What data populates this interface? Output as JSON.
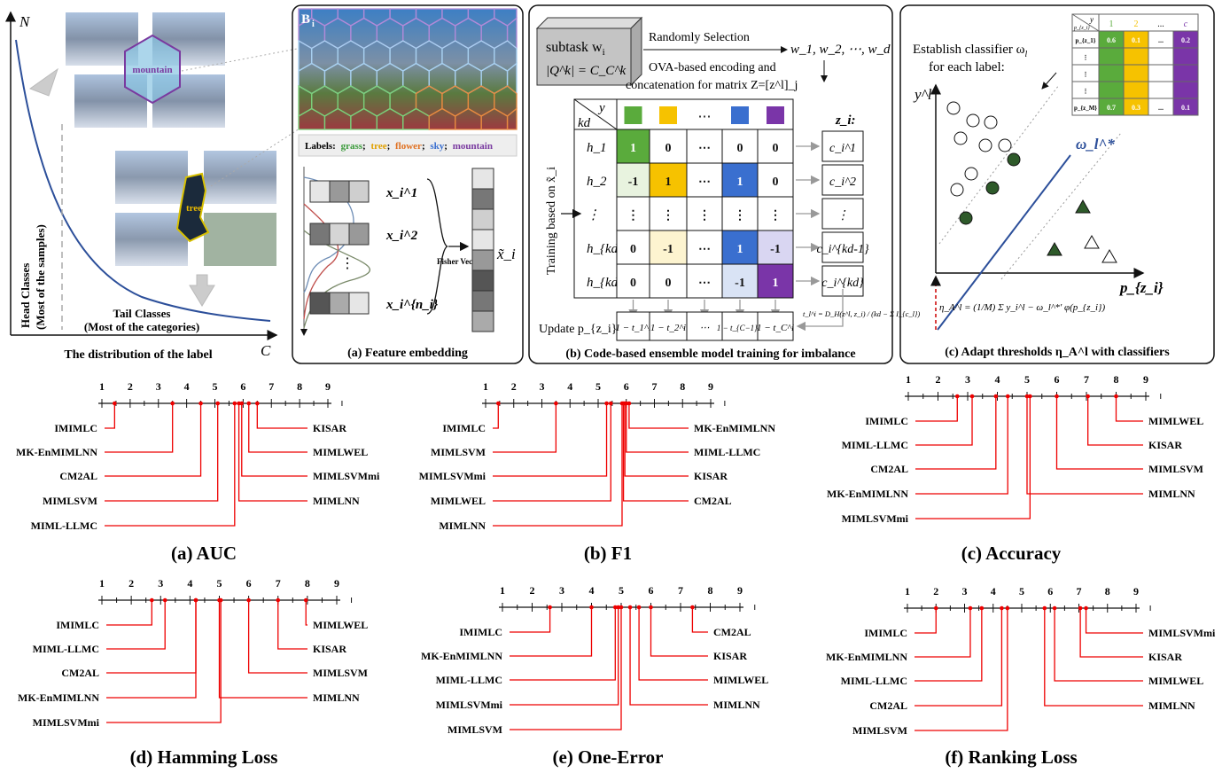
{
  "panel_dist": {
    "axis_y": "N",
    "axis_x": "C",
    "head_label_1": "Head Classes",
    "head_label_2": "(Most of the samples)",
    "tail_label_1": "Tail Classes",
    "tail_label_2": "(Most of the categories)",
    "caption": "The distribution of the label",
    "mountain_tag": "mountain",
    "tree_tag": "tree"
  },
  "panel_a": {
    "bag_label": "B",
    "bag_sub": "i",
    "labels_prefix": "Labels:",
    "labels": [
      {
        "text": "grass",
        "color": "#3a9a3a"
      },
      {
        "text": "tree",
        "color": "#e0a000"
      },
      {
        "text": "flower",
        "color": "#e07020"
      },
      {
        "text": "sky",
        "color": "#3a6fcf"
      },
      {
        "text": "mountain",
        "color": "#7a3aa0"
      }
    ],
    "x_labels": [
      "x_i^1",
      "x_i^2",
      "x_i^{n_i}"
    ],
    "fisher": "Fisher Vector",
    "embed_label": "x̃_i",
    "caption": "(a) Feature embedding"
  },
  "panel_b": {
    "subtask_line1": "subtask w",
    "subtask_sub": "i",
    "subtask_line2": "|Q^k| = C_C^k",
    "random_sel": "Randomly Selection",
    "w_list": "w_1, w_2, ⋯, w_d",
    "ova_1": "OVA-based encoding and",
    "ova_2": "concatenation for matrix Z=[z^l]_j",
    "corner_y": "y",
    "corner_kd": "kd",
    "zi_head": "z_i:",
    "train_label": "Training based on x̃_i",
    "col_colors": [
      "#5aab3c",
      "#f6c200",
      "#ffffff",
      "#3a6fcf",
      "#7a35a8"
    ],
    "rows": [
      {
        "h": "h_1",
        "cells": [
          "1",
          "0",
          "⋯",
          "0",
          "0"
        ],
        "c": "c_i^1"
      },
      {
        "h": "h_2",
        "cells": [
          "-1",
          "1",
          "⋯",
          "1",
          "0"
        ],
        "c": "c_i^2"
      },
      {
        "h": "⋮",
        "cells": [
          "⋮",
          "⋮",
          "⋮",
          "⋮",
          "⋮"
        ],
        "c": "⋮"
      },
      {
        "h": "h_{kd-1}",
        "cells": [
          "0",
          "-1",
          "⋯",
          "1",
          "-1"
        ],
        "c": "c_i^{kd-1}"
      },
      {
        "h": "h_{kd}",
        "cells": [
          "0",
          "0",
          "⋯",
          "-1",
          "1"
        ],
        "c": "c_i^{kd}"
      }
    ],
    "update_label": "Update p_{z_i}:",
    "update_cells": [
      "1 − t_1^i",
      "1 − t_2^i",
      "⋯",
      "1 − t_{C−1}^i",
      "1 − t_C^i"
    ],
    "t_formula": "t_l^i = D_H(z^l, z_i) / (kd − Σ I_{c_l})",
    "caption": "(b) Code-based ensemble model training for imbalance"
  },
  "panel_c": {
    "establish_1": "Establish classifier ω",
    "establish_sub": "l",
    "establish_2": "for each label:",
    "axis_y": "y^l",
    "axis_x": "p_{z_i}",
    "omega_label": "ω_l^*",
    "eta_formula": "η_A^l = (1/M) Σ y_i^l − ω_l^*′ φ(p_{z_i})",
    "caption": "(c) Adapt thresholds η_A^l with classifiers",
    "mini_table": {
      "corner_top": "y",
      "corner_bottom": "p_{z_i}",
      "cols": [
        "1",
        "2",
        "...",
        "c"
      ],
      "col_colors": [
        "#5aab3c",
        "#f6c200",
        "#ffffff",
        "#7a35a8"
      ],
      "rows": [
        {
          "label": "p_{z_1}",
          "vals": [
            "0.6",
            "0.1",
            "...",
            "0.2"
          ]
        },
        {
          "label": "⋮",
          "vals": [
            "",
            "",
            "",
            ""
          ]
        },
        {
          "label": "⋮",
          "vals": [
            "",
            "",
            "",
            ""
          ]
        },
        {
          "label": "⋮",
          "vals": [
            "",
            "",
            "",
            ""
          ]
        },
        {
          "label": "p_{z_M}",
          "vals": [
            "0.7",
            "0.3",
            "...",
            "0.1"
          ]
        }
      ]
    }
  },
  "cd_diagrams": [
    {
      "caption": "(a) AUC",
      "left": [
        {
          "name": "IMIMLC",
          "rank": 1.45
        },
        {
          "name": "MK-EnMIMLNN",
          "rank": 3.5
        },
        {
          "name": "CM2AL",
          "rank": 4.5
        },
        {
          "name": "MIMLSVM",
          "rank": 5.1
        },
        {
          "name": "MIML-LLMC",
          "rank": 5.7
        }
      ],
      "right": [
        {
          "name": "KISAR",
          "rank": 6.5
        },
        {
          "name": "MIMLWEL",
          "rank": 6.2
        },
        {
          "name": "MIMLSVMmi",
          "rank": 5.95
        },
        {
          "name": "MIMLNN",
          "rank": 5.85
        }
      ]
    },
    {
      "caption": "(b) F1",
      "left": [
        {
          "name": "IMIMLC",
          "rank": 1.45
        },
        {
          "name": "MIMLSVM",
          "rank": 3.5
        },
        {
          "name": "MIMLSVMmi",
          "rank": 5.3
        },
        {
          "name": "MIMLWEL",
          "rank": 5.45
        },
        {
          "name": "MIMLNN",
          "rank": 5.85
        }
      ],
      "right": [
        {
          "name": "MK-EnMIMLNN",
          "rank": 6.1
        },
        {
          "name": "MIML-LLMC",
          "rank": 6.0
        },
        {
          "name": "KISAR",
          "rank": 5.95
        },
        {
          "name": "CM2AL",
          "rank": 5.9
        }
      ]
    },
    {
      "caption": "(c) Accuracy",
      "left": [
        {
          "name": "IMIMLC",
          "rank": 2.65
        },
        {
          "name": "MIML-LLMC",
          "rank": 3.15
        },
        {
          "name": "CM2AL",
          "rank": 3.95
        },
        {
          "name": "MK-EnMIMLNN",
          "rank": 4.35
        },
        {
          "name": "MIMLSVMmi",
          "rank": 5.1
        }
      ],
      "right": [
        {
          "name": "MIMLWEL",
          "rank": 8.0
        },
        {
          "name": "KISAR",
          "rank": 7.05
        },
        {
          "name": "MIMLSVM",
          "rank": 6.0
        },
        {
          "name": "MIMLNN",
          "rank": 5.0
        }
      ]
    },
    {
      "caption": "(d) Hamming Loss",
      "left": [
        {
          "name": "IMIMLC",
          "rank": 2.7
        },
        {
          "name": "MIML-LLMC",
          "rank": 3.15
        },
        {
          "name": "CM2AL",
          "rank": 4.2
        },
        {
          "name": "MK-EnMIMLNN",
          "rank": 4.2
        },
        {
          "name": "MIMLSVMmi",
          "rank": 5.05
        }
      ],
      "right": [
        {
          "name": "MIMLWEL",
          "rank": 7.95
        },
        {
          "name": "KISAR",
          "rank": 7.0
        },
        {
          "name": "MIMLSVM",
          "rank": 6.0
        },
        {
          "name": "MIMLNN",
          "rank": 5.0
        }
      ]
    },
    {
      "caption": "(e) One-Error",
      "left": [
        {
          "name": "IMIMLC",
          "rank": 2.6
        },
        {
          "name": "MK-EnMIMLNN",
          "rank": 4.0
        },
        {
          "name": "MIML-LLMC",
          "rank": 4.8
        },
        {
          "name": "MIMLSVMmi",
          "rank": 4.9
        },
        {
          "name": "MIMLSVM",
          "rank": 5.0
        }
      ],
      "right": [
        {
          "name": "CM2AL",
          "rank": 7.4
        },
        {
          "name": "KISAR",
          "rank": 6.0
        },
        {
          "name": "MIMLWEL",
          "rank": 5.6
        },
        {
          "name": "MIMLNN",
          "rank": 5.3
        }
      ]
    },
    {
      "caption": "(f) Ranking Loss",
      "left": [
        {
          "name": "IMIMLC",
          "rank": 2.0
        },
        {
          "name": "MK-EnMIMLNN",
          "rank": 3.2
        },
        {
          "name": "MIML-LLMC",
          "rank": 3.6
        },
        {
          "name": "CM2AL",
          "rank": 4.3
        },
        {
          "name": "MIMLSVM",
          "rank": 4.5
        }
      ],
      "right": [
        {
          "name": "MIMLSVMmi",
          "rank": 7.25
        },
        {
          "name": "KISAR",
          "rank": 7.05
        },
        {
          "name": "MIMLWEL",
          "rank": 6.15
        },
        {
          "name": "MIMLNN",
          "rank": 5.8
        }
      ]
    }
  ],
  "cd_axis_ticks": [
    "1",
    "2",
    "3",
    "4",
    "5",
    "6",
    "7",
    "8",
    "9"
  ]
}
